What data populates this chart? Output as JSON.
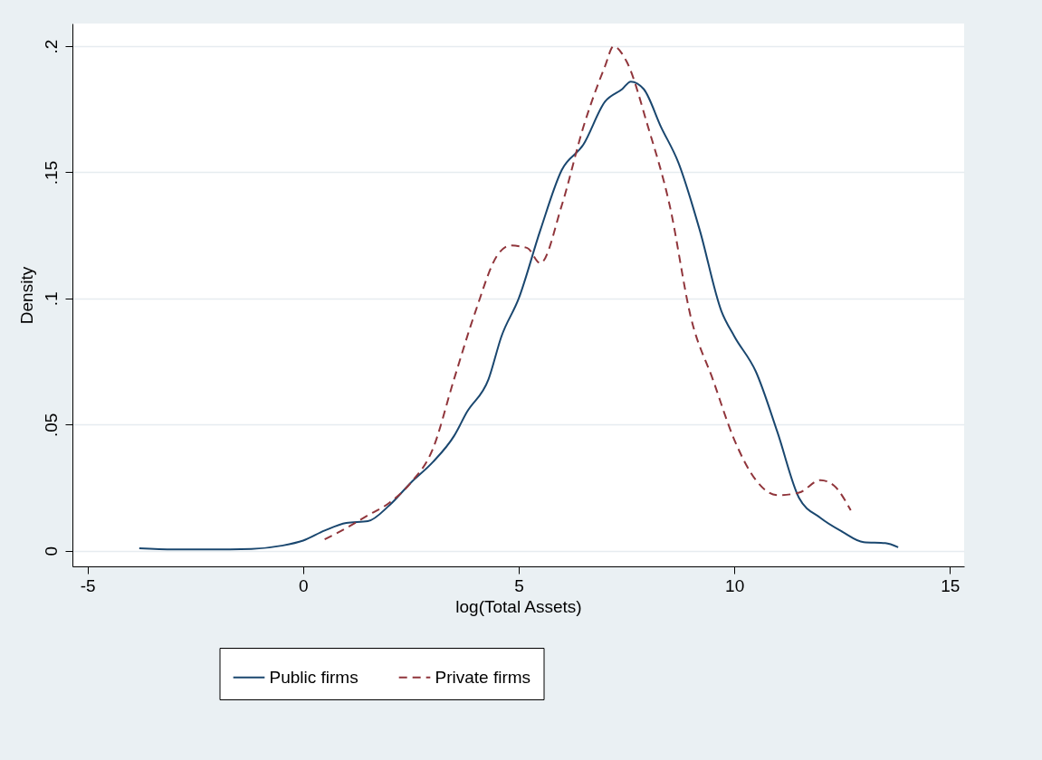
{
  "chart_data": {
    "type": "line",
    "xlabel": "log(Total Assets)",
    "ylabel": "Density",
    "xlim": [
      -5.35,
      15.33
    ],
    "ylim": [
      -0.0062,
      0.209
    ],
    "xticks": [
      -5,
      0,
      5,
      10,
      15
    ],
    "yticks": [
      0,
      {
        "value": 0.05,
        "label": ".05"
      },
      {
        "value": 0.1,
        "label": ".1"
      },
      {
        "value": 0.15,
        "label": ".15"
      },
      {
        "value": 0.2,
        "label": ".2"
      }
    ],
    "grid": "y",
    "legend": "bottom",
    "marker": "none",
    "series": [
      {
        "name": "Public firms",
        "color": "#1a476f",
        "line_style": "solid",
        "x": [
          -3.8,
          -3,
          -2,
          -1.2,
          -0.5,
          0,
          0.5,
          1,
          1.5,
          2,
          2.5,
          3,
          3.5,
          3.8,
          4.3,
          4.6,
          5,
          5.5,
          6,
          6.5,
          7,
          7.4,
          7.6,
          7.9,
          8.3,
          8.7,
          9.2,
          9.7,
          10,
          10.5,
          11,
          11.5,
          12,
          12.5,
          13,
          13.5,
          13.8
        ],
        "values": [
          0.001,
          0.0005,
          0.0005,
          0.0007,
          0.002,
          0.004,
          0.008,
          0.011,
          0.0117,
          0.018,
          0.027,
          0.035,
          0.0455,
          0.055,
          0.068,
          0.085,
          0.1,
          0.127,
          0.151,
          0.161,
          0.178,
          0.183,
          0.186,
          0.183,
          0.168,
          0.154,
          0.127,
          0.095,
          0.085,
          0.071,
          0.047,
          0.021,
          0.013,
          0.0076,
          0.0034,
          0.003,
          0.0014
        ]
      },
      {
        "name": "Private firms",
        "color": "#90353b",
        "line_style": "dashed",
        "x": [
          0.5,
          1,
          1.5,
          2,
          2.5,
          3,
          3.5,
          4,
          4.5,
          4.8,
          5.2,
          5.5,
          6,
          6.5,
          7,
          7.2,
          7.5,
          8,
          8.5,
          9,
          9.5,
          10,
          10.5,
          11,
          11.5,
          12,
          12.3,
          12.7
        ],
        "values": [
          0.0045,
          0.009,
          0.014,
          0.019,
          0.027,
          0.04,
          0.068,
          0.095,
          0.117,
          0.121,
          0.12,
          0.114,
          0.137,
          0.168,
          0.192,
          0.2,
          0.194,
          0.168,
          0.137,
          0.092,
          0.068,
          0.044,
          0.028,
          0.022,
          0.023,
          0.028,
          0.026,
          0.016
        ]
      }
    ]
  }
}
